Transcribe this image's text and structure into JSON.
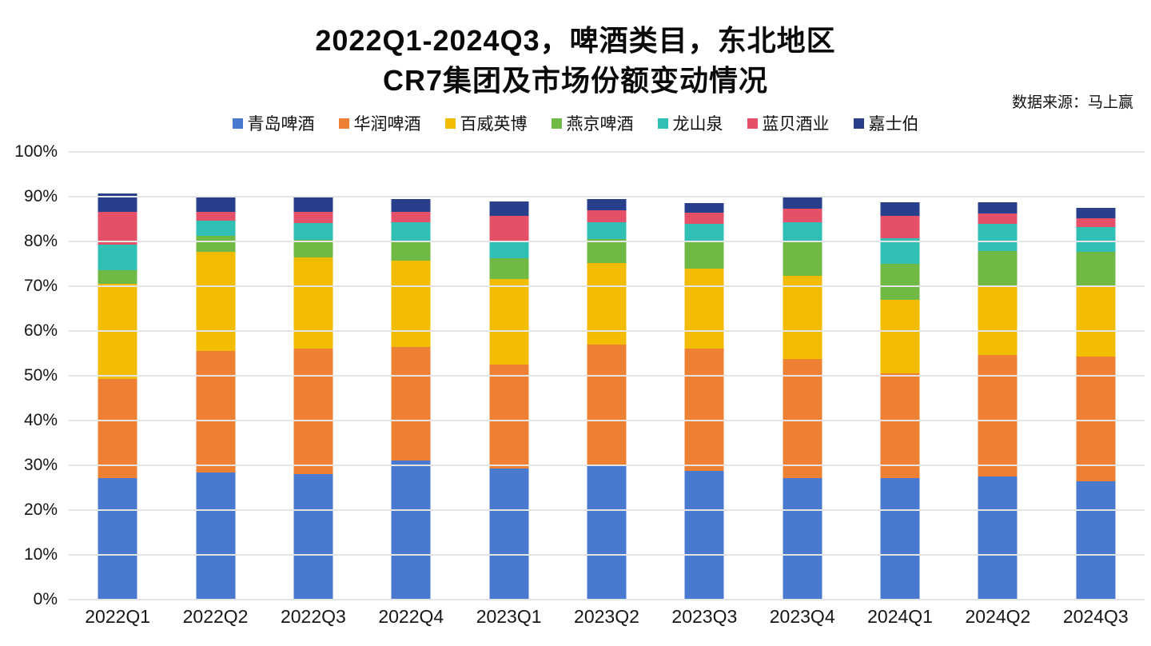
{
  "title": {
    "line1": "2022Q1-2024Q3，啤酒类目，东北地区",
    "line2": "CR7集团及市场份额变动情况"
  },
  "source_note": "数据来源：马上赢",
  "chart_data": {
    "type": "bar",
    "stacked": true,
    "title": "2022Q1-2024Q3，啤酒类目，东北地区 CR7集团及市场份额变动情况",
    "categories": [
      "2022Q1",
      "2022Q2",
      "2022Q3",
      "2022Q4",
      "2023Q1",
      "2023Q2",
      "2023Q3",
      "2023Q4",
      "2024Q1",
      "2024Q2",
      "2024Q3"
    ],
    "series": [
      {
        "name": "青岛啤酒",
        "color": "#4A79D0",
        "values": [
          27.2,
          28.4,
          28.0,
          31.0,
          29.3,
          29.8,
          28.8,
          27.1,
          27.2,
          27.5,
          26.5
        ]
      },
      {
        "name": "华润啤酒",
        "color": "#ED8032",
        "values": [
          22.1,
          27.1,
          28.1,
          25.4,
          23.2,
          27.2,
          27.3,
          26.6,
          23.4,
          27.1,
          27.8
        ]
      },
      {
        "name": "百威英博",
        "color": "#F2BC00",
        "values": [
          21.2,
          22.2,
          20.4,
          19.3,
          19.1,
          18.2,
          17.8,
          18.7,
          16.4,
          15.5,
          15.5
        ]
      },
      {
        "name": "燕京啤酒",
        "color": "#70B944",
        "values": [
          3.0,
          3.6,
          3.9,
          4.5,
          4.6,
          5.3,
          6.2,
          7.5,
          8.0,
          7.8,
          7.8
        ]
      },
      {
        "name": "龙山泉",
        "color": "#2FBFB4",
        "values": [
          5.8,
          3.4,
          3.8,
          4.1,
          4.0,
          3.8,
          3.9,
          4.4,
          5.7,
          6.1,
          5.7
        ]
      },
      {
        "name": "蓝贝酒业",
        "color": "#E35068",
        "values": [
          7.4,
          2.0,
          2.5,
          2.4,
          5.5,
          2.6,
          2.4,
          3.0,
          5.1,
          2.2,
          1.9
        ]
      },
      {
        "name": "嘉士伯",
        "color": "#2A3F8B",
        "values": [
          4.0,
          3.5,
          3.3,
          2.8,
          3.2,
          2.6,
          2.2,
          2.6,
          2.9,
          2.5,
          2.4
        ]
      }
    ],
    "totals": [
      90.7,
      90.2,
      90.0,
      89.5,
      88.9,
      89.5,
      88.6,
      89.9,
      88.7,
      88.7,
      87.6
    ],
    "xlabel": "",
    "ylabel": "",
    "ylim": [
      0,
      100
    ],
    "y_ticks": [
      "0%",
      "10%",
      "20%",
      "30%",
      "40%",
      "50%",
      "60%",
      "70%",
      "80%",
      "90%",
      "100%"
    ],
    "grid": true,
    "legend_position": "top",
    "unit": "percent-market-share"
  },
  "colors": {
    "background": "#FFFFFF",
    "gridline": "#E4E4E4",
    "text": "#0A0A0A"
  }
}
